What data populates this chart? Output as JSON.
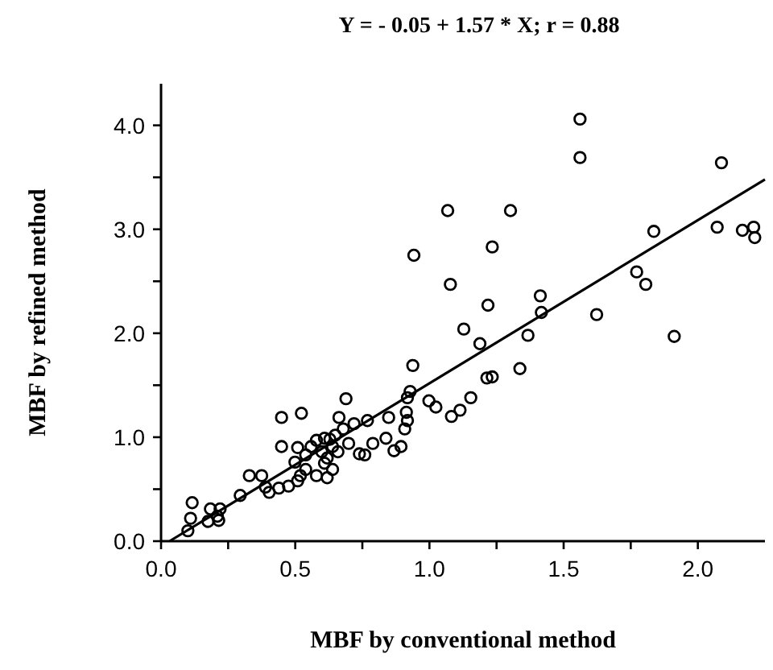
{
  "chart_data": {
    "type": "scatter",
    "title": "Y = - 0.05 + 1.57 * X;  r = 0.88",
    "xlabel": "MBF by conventional method",
    "ylabel": "MBF by refined method",
    "xlim": [
      0,
      2.25
    ],
    "ylim": [
      0,
      4.4
    ],
    "xticks": [
      {
        "value": 0,
        "label": "0.0"
      },
      {
        "value": 0.25,
        "label": null
      },
      {
        "value": 0.5,
        "label": "0.5"
      },
      {
        "value": 0.75,
        "label": null
      },
      {
        "value": 1,
        "label": "1.0"
      },
      {
        "value": 1.25,
        "label": null
      },
      {
        "value": 1.5,
        "label": "1.5"
      },
      {
        "value": 1.75,
        "label": null
      },
      {
        "value": 2,
        "label": "2.0"
      }
    ],
    "yticks": [
      {
        "value": 0,
        "label": "0.0"
      },
      {
        "value": 0.5,
        "label": null
      },
      {
        "value": 1,
        "label": "1.0"
      },
      {
        "value": 1.5,
        "label": null
      },
      {
        "value": 2,
        "label": "2.0"
      },
      {
        "value": 2.5,
        "label": null
      },
      {
        "value": 3,
        "label": "3.0"
      },
      {
        "value": 3.5,
        "label": null
      },
      {
        "value": 4,
        "label": "4.0"
      }
    ],
    "grid": false,
    "marker": "circle",
    "series": [
      {
        "color": "#000000",
        "x": [
          0.116,
          0.11,
          0.1,
          0.175,
          0.184,
          0.21,
          0.22,
          0.215,
          0.295,
          0.329,
          0.375,
          0.389,
          0.403,
          0.439,
          0.475,
          0.449,
          0.523,
          0.449,
          0.509,
          0.499,
          0.519,
          0.539,
          0.559,
          0.579,
          0.609,
          0.629,
          0.599,
          0.619,
          0.639,
          0.649,
          0.659,
          0.663,
          0.689,
          0.679,
          0.699,
          0.719,
          0.739,
          0.759,
          0.769,
          0.789,
          0.838,
          0.848,
          0.868,
          0.894,
          0.908,
          0.914,
          0.918,
          0.928,
          0.609,
          0.579,
          0.539,
          0.639,
          0.509,
          0.619,
          0.918,
          0.938,
          0.942,
          0.998,
          1.024,
          1.068,
          1.078,
          1.082,
          1.114,
          1.154,
          1.128,
          1.188,
          1.214,
          1.234,
          1.218,
          1.234,
          1.302,
          1.337,
          1.367,
          1.413,
          1.417,
          1.561,
          1.561,
          1.623,
          1.772,
          1.806,
          1.836,
          1.912,
          2.072,
          2.088,
          2.166,
          2.208,
          2.212
        ],
        "values": [
          0.37,
          0.22,
          0.1,
          0.19,
          0.31,
          0.24,
          0.31,
          0.2,
          0.44,
          0.63,
          0.63,
          0.52,
          0.47,
          0.51,
          0.53,
          1.19,
          1.23,
          0.91,
          0.9,
          0.76,
          0.63,
          0.83,
          0.91,
          0.97,
          0.99,
          0.98,
          0.86,
          0.8,
          0.91,
          1.02,
          0.86,
          1.19,
          1.37,
          1.08,
          0.94,
          1.13,
          0.84,
          0.83,
          1.16,
          0.94,
          0.99,
          1.19,
          0.87,
          0.91,
          1.08,
          1.24,
          1.38,
          1.44,
          0.75,
          0.63,
          0.69,
          0.69,
          0.58,
          0.61,
          1.16,
          1.69,
          2.75,
          1.35,
          1.29,
          3.18,
          2.47,
          1.2,
          1.26,
          1.38,
          2.04,
          1.9,
          1.57,
          1.58,
          2.27,
          2.83,
          3.18,
          1.66,
          1.98,
          2.36,
          2.2,
          4.06,
          3.69,
          2.18,
          2.59,
          2.47,
          2.98,
          1.97,
          3.02,
          3.64,
          2.99,
          3.02,
          2.92
        ]
      },
      {
        "type": "line",
        "color": "#000000",
        "marker": "none",
        "x": [
          0.032,
          2.25
        ],
        "values": [
          0.0,
          3.48
        ]
      }
    ]
  }
}
